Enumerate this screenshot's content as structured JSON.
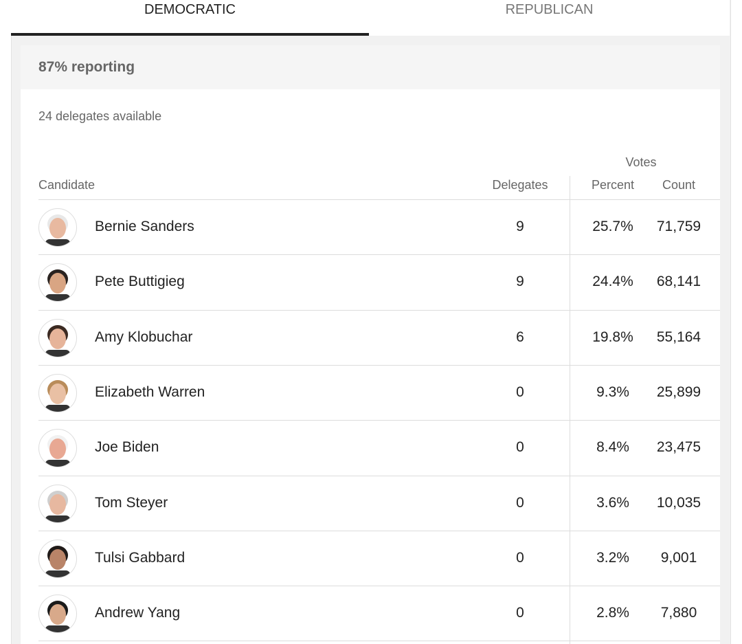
{
  "tabs": [
    "DEMOCRATIC",
    "REPUBLICAN"
  ],
  "reporting": "87% reporting",
  "delegates_available": "24 delegates available",
  "table": {
    "votes_header": "Votes",
    "headers": [
      "Candidate",
      "Delegates",
      "Percent",
      "Count"
    ],
    "rows": [
      [
        "Bernie Sanders",
        "9",
        "25.7%",
        "71,759"
      ],
      [
        "Pete Buttigieg",
        "9",
        "24.4%",
        "68,141"
      ],
      [
        "Amy Klobuchar",
        "6",
        "19.8%",
        "55,164"
      ],
      [
        "Elizabeth Warren",
        "0",
        "9.3%",
        "25,899"
      ],
      [
        "Joe Biden",
        "0",
        "8.4%",
        "23,475"
      ],
      [
        "Tom Steyer",
        "0",
        "3.6%",
        "10,035"
      ],
      [
        "Tulsi Gabbard",
        "0",
        "3.2%",
        "9,001"
      ],
      [
        "Andrew Yang",
        "0",
        "2.8%",
        "7,880"
      ]
    ]
  }
}
